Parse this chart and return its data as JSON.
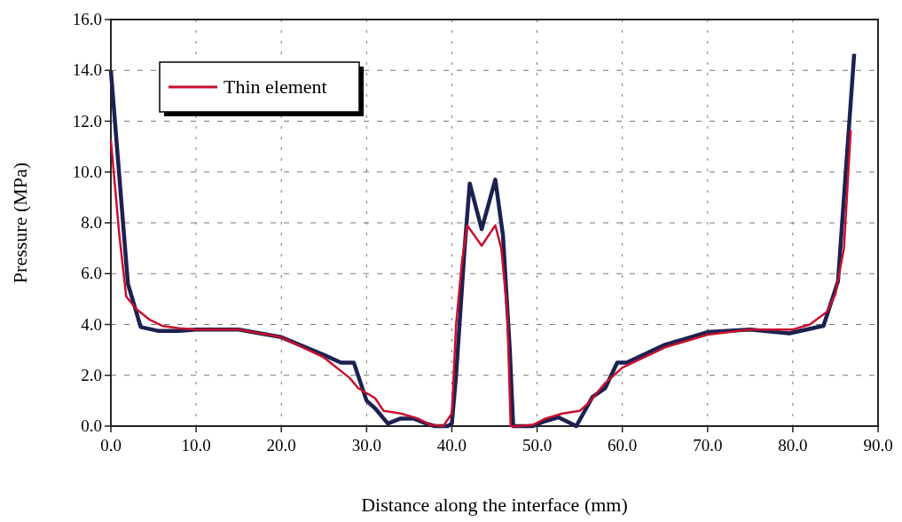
{
  "chart_data": {
    "type": "line",
    "xlabel": "Distance along the interface (mm)",
    "ylabel": "Pressure (MPa)",
    "xlim": [
      0,
      90
    ],
    "ylim": [
      0,
      16
    ],
    "xticks": [
      {
        "value": 0,
        "label": "0.0"
      },
      {
        "value": 10,
        "label": "10.0"
      },
      {
        "value": 20,
        "label": "20.0"
      },
      {
        "value": 30,
        "label": "30.0"
      },
      {
        "value": 40,
        "label": "40.0"
      },
      {
        "value": 50,
        "label": "50.0"
      },
      {
        "value": 60,
        "label": "60.0"
      },
      {
        "value": 70,
        "label": "70.0"
      },
      {
        "value": 80,
        "label": "80.0"
      },
      {
        "value": 90,
        "label": "90.0"
      }
    ],
    "yticks": [
      {
        "value": 0,
        "label": "0.0"
      },
      {
        "value": 2,
        "label": "2.0"
      },
      {
        "value": 4,
        "label": "4.0"
      },
      {
        "value": 6,
        "label": "6.0"
      },
      {
        "value": 8,
        "label": "8.0"
      },
      {
        "value": 10,
        "label": "10.0"
      },
      {
        "value": 12,
        "label": "12.0"
      },
      {
        "value": 14,
        "label": "14.0"
      },
      {
        "value": 16,
        "label": "16.0"
      }
    ],
    "grid": true,
    "legend": "top left",
    "marker": "none",
    "line_style": "solid",
    "series": [
      {
        "color": "#1c2150",
        "x": [
          0,
          2,
          3.5,
          5.5,
          8,
          10,
          15,
          20,
          25,
          27,
          28.5,
          30,
          31,
          32.5,
          34,
          35.5,
          37,
          38,
          39.5,
          40,
          40.5,
          41.5,
          42.1,
          43.5,
          45.1,
          46,
          46.8,
          47.2,
          49.5,
          51,
          52.5,
          54.6,
          56.5,
          58,
          59.4,
          60.5,
          65,
          70,
          75,
          79.6,
          83.6,
          85.3,
          87.2
        ],
        "values": [
          14.0,
          5.6,
          3.9,
          3.75,
          3.75,
          3.8,
          3.8,
          3.5,
          2.8,
          2.5,
          2.5,
          1.0,
          0.7,
          0.1,
          0.3,
          0.3,
          0.1,
          0,
          0,
          0.1,
          2.0,
          7.0,
          9.55,
          7.75,
          9.7,
          7.5,
          3.0,
          0,
          0,
          0.2,
          0.35,
          0,
          1.15,
          1.5,
          2.5,
          2.5,
          3.2,
          3.7,
          3.8,
          3.65,
          3.95,
          5.7,
          14.65
        ]
      },
      {
        "name": "Thin element",
        "color": "#c8102e",
        "x": [
          0,
          1,
          1.8,
          3,
          4.5,
          6,
          8,
          10,
          15,
          20,
          25,
          28,
          29,
          30,
          31,
          32,
          34,
          36,
          37.5,
          39,
          40,
          40.5,
          41.2,
          41.8,
          43.5,
          45.1,
          45.8,
          46.5,
          46.9,
          48,
          49.5,
          51,
          53,
          55,
          56,
          57,
          58,
          59,
          60,
          65,
          70,
          75,
          80,
          82,
          84,
          85,
          86,
          86.8
        ],
        "values": [
          11.25,
          7.5,
          5.1,
          4.6,
          4.2,
          3.95,
          3.85,
          3.8,
          3.8,
          3.5,
          2.7,
          1.9,
          1.5,
          1.3,
          1.1,
          0.6,
          0.5,
          0.3,
          0.05,
          0,
          0.5,
          4.0,
          6.5,
          7.9,
          7.1,
          7.9,
          7.0,
          4.5,
          0,
          0,
          0.05,
          0.3,
          0.5,
          0.6,
          0.9,
          1.3,
          1.7,
          2.0,
          2.3,
          3.1,
          3.6,
          3.8,
          3.8,
          4.0,
          4.5,
          5.2,
          7.0,
          11.65
        ]
      }
    ]
  }
}
